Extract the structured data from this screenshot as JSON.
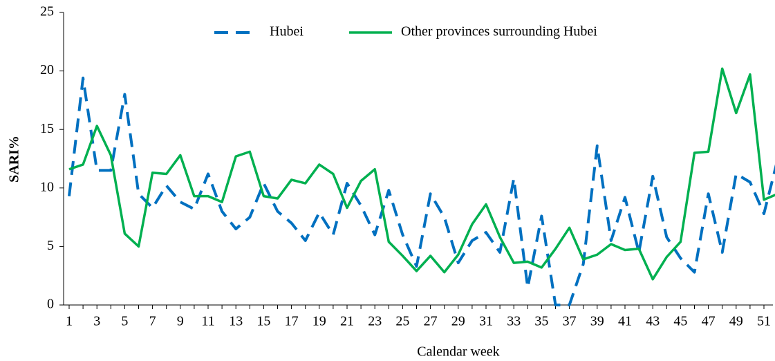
{
  "chart_data": {
    "type": "line",
    "xlabel": "Calendar week",
    "ylabel": "SARI%",
    "categories": [
      "1",
      null,
      "3",
      null,
      "5",
      null,
      "7",
      null,
      "9",
      null,
      "11",
      null,
      "13",
      null,
      "15",
      null,
      "17",
      null,
      "19",
      null,
      "21",
      null,
      "23",
      null,
      "25",
      null,
      "27",
      null,
      "29",
      null,
      "31",
      null,
      "33",
      null,
      "35",
      null,
      "37",
      null,
      "39",
      null,
      "41",
      null,
      "43",
      null,
      "45",
      null,
      "47",
      null,
      "49",
      null,
      "51",
      null
    ],
    "series": [
      {
        "name": "Hubei",
        "color": "#0070c0",
        "dashed": true,
        "values": [
          9.3,
          19.4,
          11.5,
          11.5,
          18,
          9.5,
          8.3,
          10.2,
          8.8,
          8.2,
          11.2,
          8,
          6.5,
          7.5,
          10.4,
          8,
          7,
          5.5,
          7.9,
          6,
          10.4,
          8.5,
          6,
          9.8,
          6,
          3.3,
          9.5,
          7.5,
          3.6,
          5.5,
          6.2,
          4.5,
          10.8,
          1.5,
          7.6,
          0,
          0,
          3.5,
          13.6,
          5.5,
          9.2,
          4.5,
          11,
          5.8,
          4,
          2.8,
          9.5,
          4.5,
          11.2,
          10.5,
          7.8,
          12.5
        ]
      },
      {
        "name": "Other provinces surrounding Hubei",
        "color": "#00b050",
        "dashed": false,
        "values": [
          11.6,
          12,
          15.3,
          12.8,
          6.1,
          5,
          11.3,
          11.2,
          12.8,
          9.3,
          9.3,
          8.8,
          12.7,
          13.1,
          9.3,
          9.1,
          10.7,
          10.4,
          12,
          11.2,
          8.3,
          10.6,
          11.6,
          5.4,
          4.2,
          2.9,
          4.2,
          2.8,
          4.3,
          6.9,
          8.6,
          5.8,
          3.6,
          3.7,
          3.2,
          4.8,
          6.6,
          3.9,
          4.3,
          5.2,
          4.7,
          4.8,
          2.2,
          4.1,
          5.4,
          13,
          13.1,
          20.2,
          16.4,
          19.7,
          9,
          9.5
        ]
      }
    ],
    "ylim": [
      0,
      25
    ],
    "yticks": [
      0,
      5,
      10,
      15,
      20,
      25
    ],
    "grid": false,
    "legend": "top"
  }
}
